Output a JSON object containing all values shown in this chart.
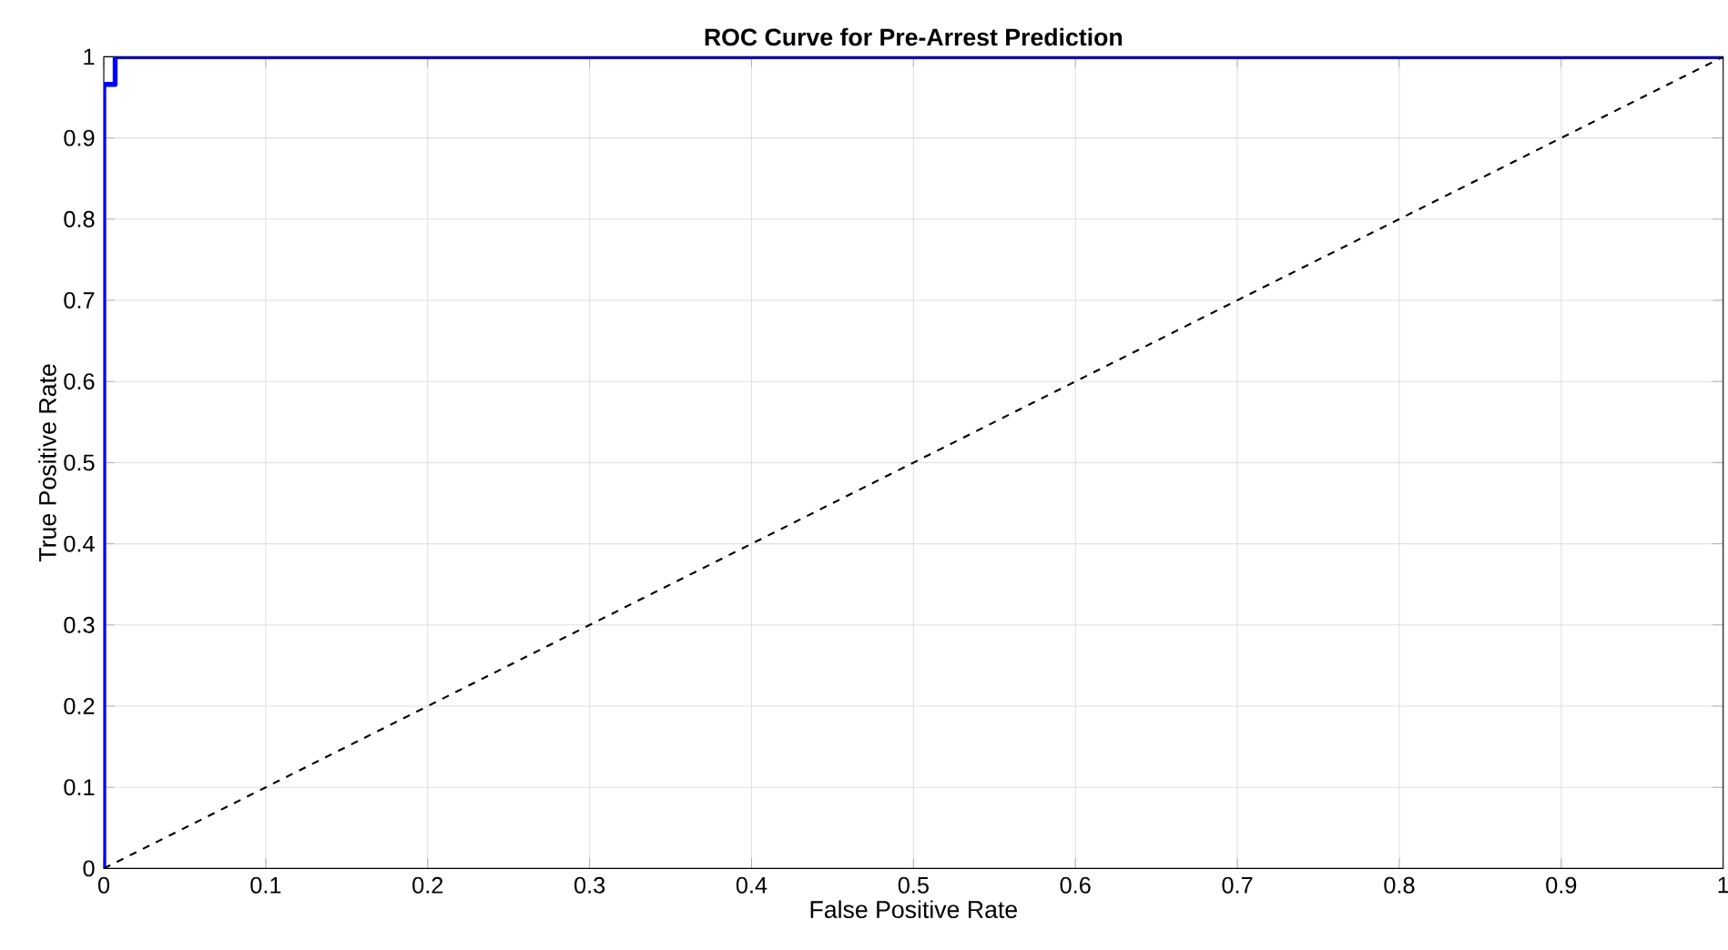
{
  "chart_data": {
    "type": "line",
    "title": "ROC Curve for Pre-Arrest Prediction",
    "xlabel": "False Positive Rate",
    "ylabel": "True Positive Rate",
    "xlim": [
      0,
      1
    ],
    "ylim": [
      0,
      1
    ],
    "xticks": [
      0,
      0.1,
      0.2,
      0.3,
      0.4,
      0.5,
      0.6,
      0.7,
      0.8,
      0.9,
      1
    ],
    "yticks": [
      0,
      0.1,
      0.2,
      0.3,
      0.4,
      0.5,
      0.6,
      0.7,
      0.8,
      0.9,
      1
    ],
    "grid": true,
    "series": [
      {
        "color": "#0000ff",
        "x": [
          0,
          0,
          0.007,
          0.007,
          1
        ],
        "values": [
          0,
          0.966,
          0.966,
          1,
          1
        ],
        "line_style": "solid"
      },
      {
        "color": "#000000",
        "x": [
          0,
          1
        ],
        "values": [
          0,
          1
        ],
        "line_style": "dashed"
      }
    ]
  }
}
